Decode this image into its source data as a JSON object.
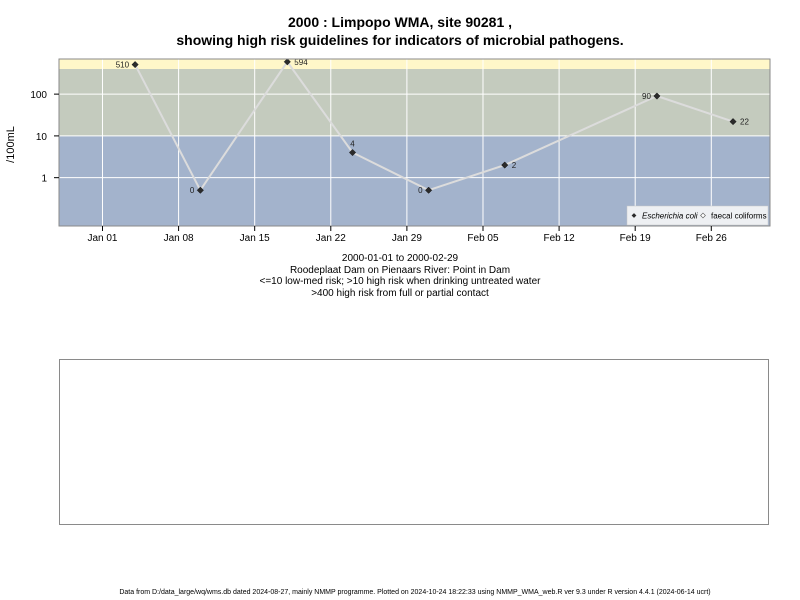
{
  "title_line1": "2000 : Limpopo WMA, site 90281 ,",
  "title_line2": "showing high risk guidelines for indicators of microbial pathogens.",
  "captions": {
    "date_range": "2000-01-01 to 2000-02-29",
    "site": "Roodeplaat Dam on Pienaars River: Point in Dam",
    "risk_note_1": "<=10 low-med risk; >10 high risk when drinking untreated water",
    "risk_note_2": ">400 high risk from full or partial contact"
  },
  "footer": "Data from D:/data_large/wq/wms.db dated 2024-08-27, mainly NMMP programme. Plotted on 2024-10-24 18:22:33 using NMMP_WMA_web.R ver 9.3 under R version 4.4.1 (2024-06-14 ucrt)",
  "colors": {
    "low_band": "#a3b3cc",
    "mid_band": "#c4cbbe",
    "high_band": "#fff7c9",
    "line": "#dcdcdc",
    "marker": "#2b2b2b",
    "grid": "#ffffff"
  },
  "chart_data": {
    "type": "line",
    "title": "2000 : Limpopo WMA, site 90281 , showing high risk guidelines for indicators of microbial pathogens.",
    "ylabel": "/100mL",
    "xlabel": "",
    "y_scale": "log",
    "y_ticks": [
      {
        "value": 1,
        "label": "1"
      },
      {
        "value": 10,
        "label": "10"
      },
      {
        "value": 100,
        "label": "100"
      }
    ],
    "x_ticks": [
      {
        "date": "2000-01-01",
        "label": "Jan 01"
      },
      {
        "date": "2000-01-08",
        "label": "Jan 08"
      },
      {
        "date": "2000-01-15",
        "label": "Jan 15"
      },
      {
        "date": "2000-01-22",
        "label": "Jan 22"
      },
      {
        "date": "2000-01-29",
        "label": "Jan 29"
      },
      {
        "date": "2000-02-05",
        "label": "Feb 05"
      },
      {
        "date": "2000-02-12",
        "label": "Feb 12"
      },
      {
        "date": "2000-02-19",
        "label": "Feb 19"
      },
      {
        "date": "2000-02-26",
        "label": "Feb 26"
      }
    ],
    "bands": [
      {
        "name": "low-med risk",
        "from": 0.03,
        "to": 10,
        "color": "#a3b3cc"
      },
      {
        "name": "high risk drinking untreated water",
        "from": 10,
        "to": 400,
        "color": "#c4cbbe"
      },
      {
        "name": "high risk full or partial contact",
        "from": 400,
        "to": 800,
        "color": "#fff7c9"
      }
    ],
    "grid": true,
    "legend_position": "bottom-right",
    "series": [
      {
        "name": "Escherichia coli",
        "marker": "filled-diamond",
        "points": [
          {
            "date": "2000-01-04",
            "value": 510,
            "label": "510"
          },
          {
            "date": "2000-01-10",
            "value": 0.5,
            "label": "0"
          },
          {
            "date": "2000-01-18",
            "value": 594,
            "label": "594"
          },
          {
            "date": "2000-01-24",
            "value": 4,
            "label": "4"
          },
          {
            "date": "2000-01-31",
            "value": 0.5,
            "label": "0"
          },
          {
            "date": "2000-02-07",
            "value": 2,
            "label": "2"
          },
          {
            "date": "2000-02-21",
            "value": 90,
            "label": "90"
          },
          {
            "date": "2000-02-28",
            "value": 22,
            "label": "22"
          }
        ]
      },
      {
        "name": "faecal coliforms",
        "marker": "open-diamond",
        "points": []
      }
    ]
  }
}
